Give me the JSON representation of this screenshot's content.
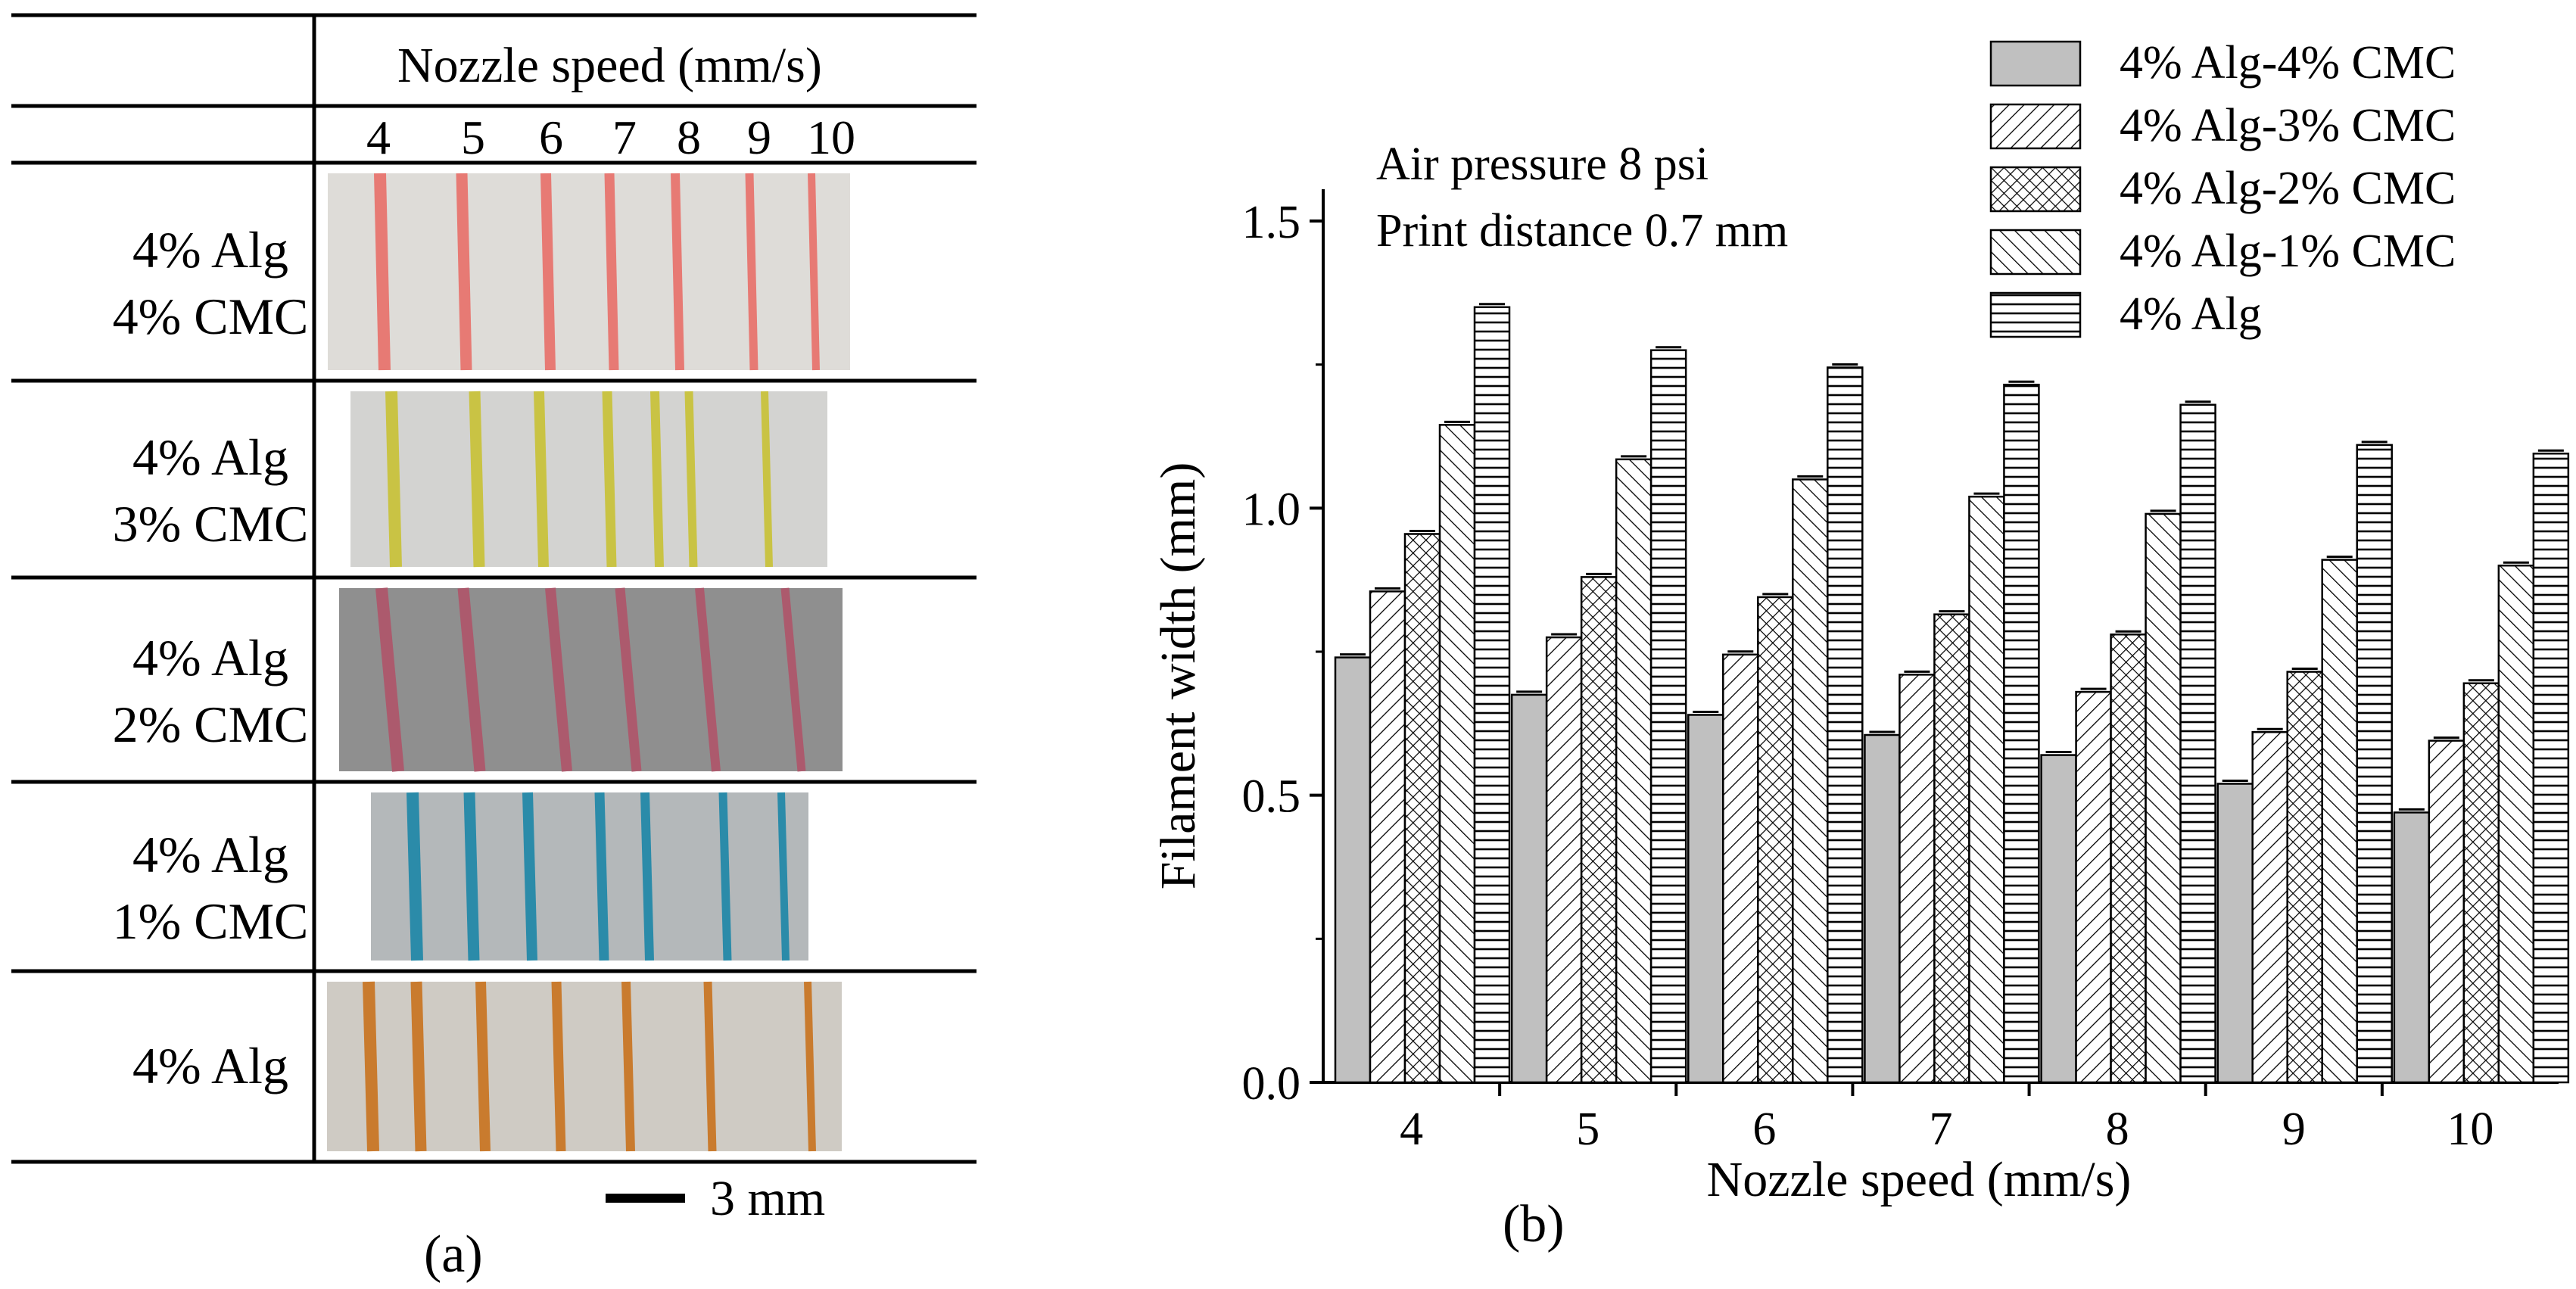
{
  "panel_a": {
    "header": "Nozzle speed (mm/s)",
    "speeds": [
      "4",
      "5",
      "6",
      "7",
      "8",
      "9",
      "10"
    ],
    "rows": [
      {
        "line1": "4% Alg",
        "line2": "4% CMC",
        "color": "#e8706a",
        "bg": "#dedcd8"
      },
      {
        "line1": "4% Alg",
        "line2": "3% CMC",
        "color": "#c9c235",
        "bg": "#d3d3d1"
      },
      {
        "line1": "4% Alg",
        "line2": "2% CMC",
        "color": "#b0556a",
        "bg": "#8f8f8f"
      },
      {
        "line1": "4% Alg",
        "line2": "1% CMC",
        "color": "#1d87a8",
        "bg": "#b4b8ba"
      },
      {
        "line1": "4% Alg",
        "line2": "",
        "color": "#c9731e",
        "bg": "#cfcbc4"
      }
    ],
    "scale_bar_label": "3 mm",
    "caption": "(a)"
  },
  "chart_data": {
    "type": "bar",
    "title": "",
    "annotations": [
      "Air pressure 8 psi",
      "Print distance 0.7 mm"
    ],
    "xlabel": "Nozzle speed (mm/s)",
    "ylabel": "Filament width (mm)",
    "categories": [
      "4",
      "5",
      "6",
      "7",
      "8",
      "9",
      "10"
    ],
    "ylim": [
      0,
      1.5
    ],
    "yticks": [
      "0.0",
      "0.5",
      "1.0",
      "1.5"
    ],
    "series": [
      {
        "name": "4% Alg-4% CMC",
        "pattern": "solid",
        "values": [
          0.74,
          0.675,
          0.64,
          0.605,
          0.57,
          0.52,
          0.47
        ]
      },
      {
        "name": "4% Alg-3% CMC",
        "pattern": "diag",
        "values": [
          0.855,
          0.775,
          0.745,
          0.71,
          0.68,
          0.61,
          0.595
        ]
      },
      {
        "name": "4% Alg-2% CMC",
        "pattern": "cross",
        "values": [
          0.955,
          0.88,
          0.845,
          0.815,
          0.78,
          0.715,
          0.695
        ]
      },
      {
        "name": "4% Alg-1% CMC",
        "pattern": "backdiag",
        "values": [
          1.145,
          1.085,
          1.05,
          1.02,
          0.99,
          0.91,
          0.9
        ]
      },
      {
        "name": "4% Alg",
        "pattern": "horiz",
        "values": [
          1.35,
          1.275,
          1.245,
          1.215,
          1.18,
          1.11,
          1.095
        ]
      }
    ],
    "legend_position": "top-right",
    "caption": "(b)"
  }
}
